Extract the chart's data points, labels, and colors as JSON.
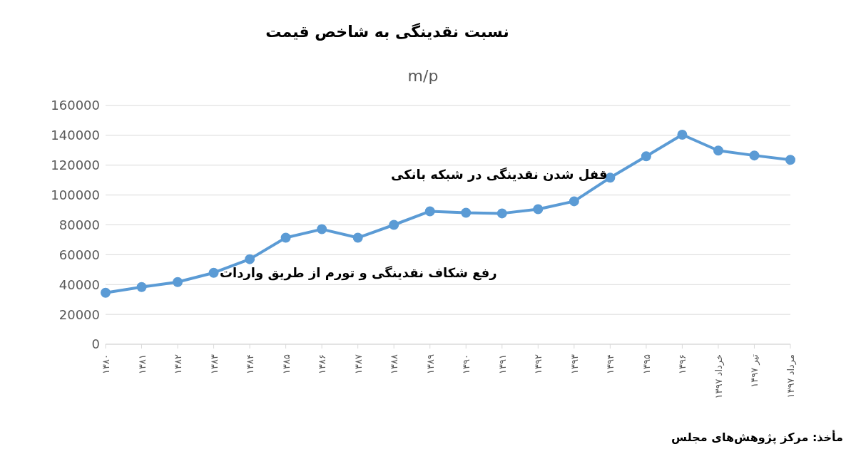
{
  "chart_data": {
    "type": "line",
    "title": "نسبت نقدینگی به شاخص قیمت",
    "subtitle": "m/p",
    "categories": [
      "۱۳۸۰",
      "۱۳۸۱",
      "۱۳۸۲",
      "۱۳۸۳",
      "۱۳۸۴",
      "۱۳۸۵",
      "۱۳۸۶",
      "۱۳۸۷",
      "۱۳۸۸",
      "۱۳۸۹",
      "۱۳۹۰",
      "۱۳۹۱",
      "۱۳۹۲",
      "۱۳۹۳",
      "۱۳۹۴",
      "۱۳۹۵",
      "۱۳۹۶",
      "خرداد ۱۳۹۷",
      "تیر ۱۳۹۷",
      "مرداد ۱۳۹۷"
    ],
    "series": [
      {
        "color": "#5b9bd5",
        "values": [
          34500,
          38300,
          41700,
          47900,
          57000,
          71400,
          77100,
          71400,
          80000,
          89100,
          88100,
          87700,
          90500,
          95800,
          111600,
          126000,
          140400,
          129800,
          126500,
          123600
        ]
      }
    ],
    "ylim": [
      0,
      160000
    ],
    "yticks": [
      0,
      20000,
      40000,
      60000,
      80000,
      100000,
      120000,
      140000,
      160000
    ],
    "grid": "y",
    "marker": "circle",
    "line_style": "solid",
    "annotations": [
      "قفل شدن نقدینگی در شبکه بانکی",
      "رفع شکاف نقدینگی و تورم از طریق واردات",
      "مأخذ: مرکز پژوهش‌های مجلس"
    ]
  }
}
